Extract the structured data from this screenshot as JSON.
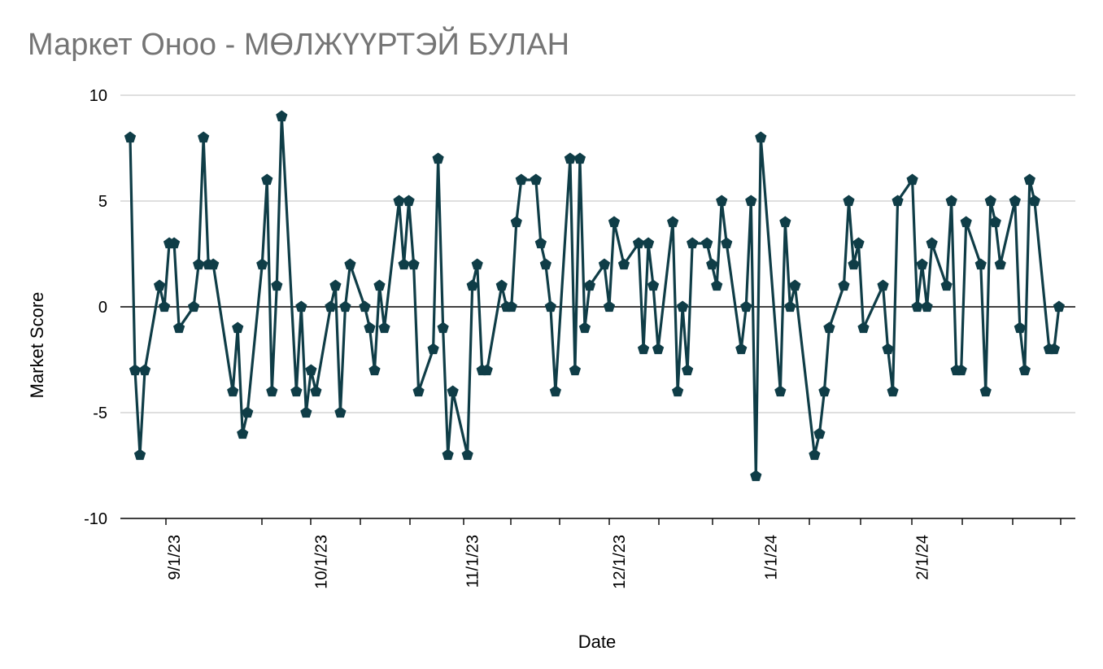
{
  "chart_data": {
    "type": "line",
    "title": "Маркет Оноо - МӨЛЖҮҮРТЭЙ БУЛАН",
    "xlabel": "Date",
    "ylabel": "Market Score",
    "ylim": [
      -10,
      10
    ],
    "y_ticks": [
      "-10",
      "-5",
      "0",
      "5",
      "10"
    ],
    "x_ticks": [
      "9/1/23",
      "10/1/23",
      "11/1/23",
      "12/1/23",
      "1/1/24",
      "2/1/24"
    ],
    "x_tick_dates": [
      "2023-09-01",
      "2023-10-01",
      "2023-11-01",
      "2023-12-01",
      "2024-01-01",
      "2024-02-01"
    ],
    "x_range": [
      "2023-08-22",
      "2024-02-25"
    ],
    "grid": true,
    "marker": "pentagon",
    "colors": {
      "series": "#0f3d47",
      "grid": "#cccccc",
      "zero_line": "#000000",
      "title": "#757575"
    },
    "series": [
      {
        "points": [
          [
            "2023-08-23",
            8
          ],
          [
            "2023-08-24",
            -3
          ],
          [
            "2023-08-25",
            -7
          ],
          [
            "2023-08-26",
            -3
          ],
          [
            "2023-08-29",
            1
          ],
          [
            "2023-08-30",
            0
          ],
          [
            "2023-08-31",
            3
          ],
          [
            "2023-09-01",
            3
          ],
          [
            "2023-09-02",
            -1
          ],
          [
            "2023-09-05",
            0
          ],
          [
            "2023-09-06",
            2
          ],
          [
            "2023-09-07",
            8
          ],
          [
            "2023-09-08",
            2
          ],
          [
            "2023-09-09",
            2
          ],
          [
            "2023-09-13",
            -4
          ],
          [
            "2023-09-14",
            -1
          ],
          [
            "2023-09-15",
            -6
          ],
          [
            "2023-09-16",
            -5
          ],
          [
            "2023-09-19",
            2
          ],
          [
            "2023-09-20",
            6
          ],
          [
            "2023-09-21",
            -4
          ],
          [
            "2023-09-22",
            1
          ],
          [
            "2023-09-23",
            9
          ],
          [
            "2023-09-26",
            -4
          ],
          [
            "2023-09-27",
            0
          ],
          [
            "2023-09-28",
            -5
          ],
          [
            "2023-09-29",
            -3
          ],
          [
            "2023-09-30",
            -4
          ],
          [
            "2023-10-03",
            0
          ],
          [
            "2023-10-04",
            1
          ],
          [
            "2023-10-05",
            -5
          ],
          [
            "2023-10-06",
            0
          ],
          [
            "2023-10-07",
            2
          ],
          [
            "2023-10-10",
            0
          ],
          [
            "2023-10-11",
            -1
          ],
          [
            "2023-10-12",
            -3
          ],
          [
            "2023-10-13",
            1
          ],
          [
            "2023-10-14",
            -1
          ],
          [
            "2023-10-17",
            5
          ],
          [
            "2023-10-18",
            2
          ],
          [
            "2023-10-19",
            5
          ],
          [
            "2023-10-20",
            2
          ],
          [
            "2023-10-21",
            -4
          ],
          [
            "2023-10-24",
            -2
          ],
          [
            "2023-10-25",
            7
          ],
          [
            "2023-10-26",
            -1
          ],
          [
            "2023-10-27",
            -7
          ],
          [
            "2023-10-28",
            -4
          ],
          [
            "2023-10-31",
            -7
          ],
          [
            "2023-11-01",
            1
          ],
          [
            "2023-11-02",
            2
          ],
          [
            "2023-11-03",
            -3
          ],
          [
            "2023-11-04",
            -3
          ],
          [
            "2023-11-07",
            1
          ],
          [
            "2023-11-08",
            0
          ],
          [
            "2023-11-09",
            0
          ],
          [
            "2023-11-10",
            4
          ],
          [
            "2023-11-11",
            6
          ],
          [
            "2023-11-14",
            6
          ],
          [
            "2023-11-15",
            3
          ],
          [
            "2023-11-16",
            2
          ],
          [
            "2023-11-17",
            0
          ],
          [
            "2023-11-18",
            -4
          ],
          [
            "2023-11-21",
            7
          ],
          [
            "2023-11-22",
            -3
          ],
          [
            "2023-11-23",
            7
          ],
          [
            "2023-11-24",
            -1
          ],
          [
            "2023-11-25",
            1
          ],
          [
            "2023-11-28",
            2
          ],
          [
            "2023-11-29",
            0
          ],
          [
            "2023-11-30",
            4
          ],
          [
            "2023-12-02",
            2
          ],
          [
            "2023-12-05",
            3
          ],
          [
            "2023-12-06",
            -2
          ],
          [
            "2023-12-07",
            3
          ],
          [
            "2023-12-08",
            1
          ],
          [
            "2023-12-09",
            -2
          ],
          [
            "2023-12-12",
            4
          ],
          [
            "2023-12-13",
            -4
          ],
          [
            "2023-12-14",
            0
          ],
          [
            "2023-12-15",
            -3
          ],
          [
            "2023-12-16",
            3
          ],
          [
            "2023-12-19",
            3
          ],
          [
            "2023-12-20",
            2
          ],
          [
            "2023-12-21",
            1
          ],
          [
            "2023-12-22",
            5
          ],
          [
            "2023-12-23",
            3
          ],
          [
            "2023-12-26",
            -2
          ],
          [
            "2023-12-27",
            0
          ],
          [
            "2023-12-28",
            5
          ],
          [
            "2023-12-29",
            -8
          ],
          [
            "2023-12-30",
            8
          ],
          [
            "2024-01-03",
            -4
          ],
          [
            "2024-01-04",
            4
          ],
          [
            "2024-01-05",
            0
          ],
          [
            "2024-01-06",
            1
          ],
          [
            "2024-01-10",
            -7
          ],
          [
            "2024-01-11",
            -6
          ],
          [
            "2024-01-12",
            -4
          ],
          [
            "2024-01-13",
            -1
          ],
          [
            "2024-01-16",
            1
          ],
          [
            "2024-01-17",
            5
          ],
          [
            "2024-01-18",
            2
          ],
          [
            "2024-01-19",
            3
          ],
          [
            "2024-01-20",
            -1
          ],
          [
            "2024-01-24",
            1
          ],
          [
            "2024-01-25",
            -2
          ],
          [
            "2024-01-26",
            -4
          ],
          [
            "2024-01-27",
            5
          ],
          [
            "2024-01-30",
            6
          ],
          [
            "2024-01-31",
            0
          ],
          [
            "2024-02-01",
            2
          ],
          [
            "2024-02-02",
            0
          ],
          [
            "2024-02-03",
            3
          ],
          [
            "2024-02-06",
            1
          ],
          [
            "2024-02-07",
            5
          ],
          [
            "2024-02-08",
            -3
          ],
          [
            "2024-02-09",
            -3
          ],
          [
            "2024-02-10",
            4
          ],
          [
            "2024-02-13",
            2
          ],
          [
            "2024-02-14",
            -4
          ],
          [
            "2024-02-15",
            5
          ],
          [
            "2024-02-16",
            4
          ],
          [
            "2024-02-17",
            2
          ],
          [
            "2024-02-20",
            5
          ],
          [
            "2024-02-21",
            -1
          ],
          [
            "2024-02-22",
            -3
          ],
          [
            "2024-02-23",
            6
          ],
          [
            "2024-02-24",
            5
          ],
          [
            "2024-02-27",
            -2
          ],
          [
            "2024-02-28",
            -2
          ],
          [
            "2024-02-29",
            0
          ]
        ]
      }
    ]
  }
}
